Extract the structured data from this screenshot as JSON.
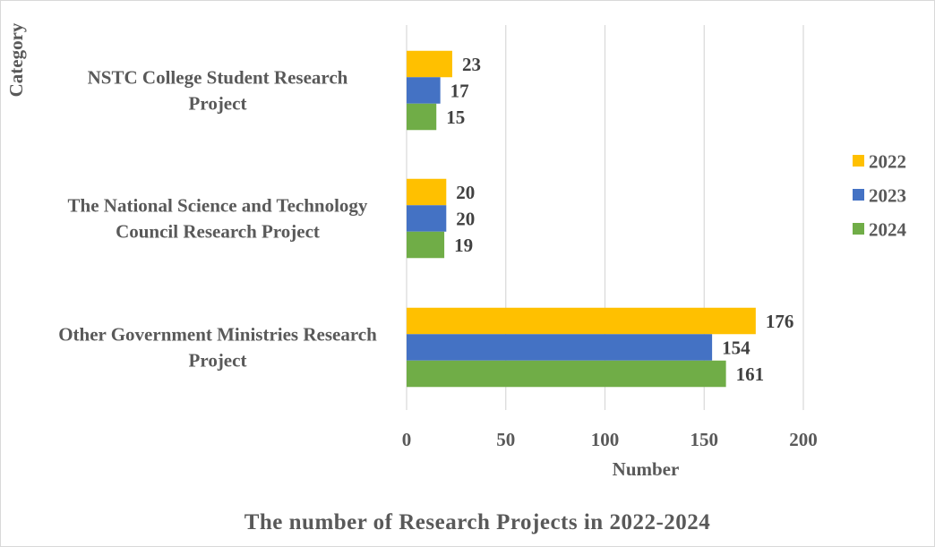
{
  "chart_data": {
    "type": "bar",
    "orientation": "horizontal",
    "title": "The number of Research Projects in 2022-2024",
    "xlabel": "Number",
    "ylabel": "Category",
    "xlim": [
      0,
      200
    ],
    "xticks": [
      0,
      50,
      100,
      150,
      200
    ],
    "grid": true,
    "legend_position": "right",
    "categories": [
      {
        "label_lines": [
          "NSTC College Student Research",
          "Project"
        ]
      },
      {
        "label_lines": [
          "The National Science and Technology",
          "Council Research Project"
        ]
      },
      {
        "label_lines": [
          "Other Government Ministries Research",
          "Project"
        ]
      }
    ],
    "series": [
      {
        "name": "2022",
        "color": "#FFC000",
        "values": [
          23,
          20,
          176
        ]
      },
      {
        "name": "2023",
        "color": "#4472C4",
        "values": [
          17,
          20,
          154
        ]
      },
      {
        "name": "2024",
        "color": "#70AD47",
        "values": [
          15,
          19,
          161
        ]
      }
    ]
  }
}
